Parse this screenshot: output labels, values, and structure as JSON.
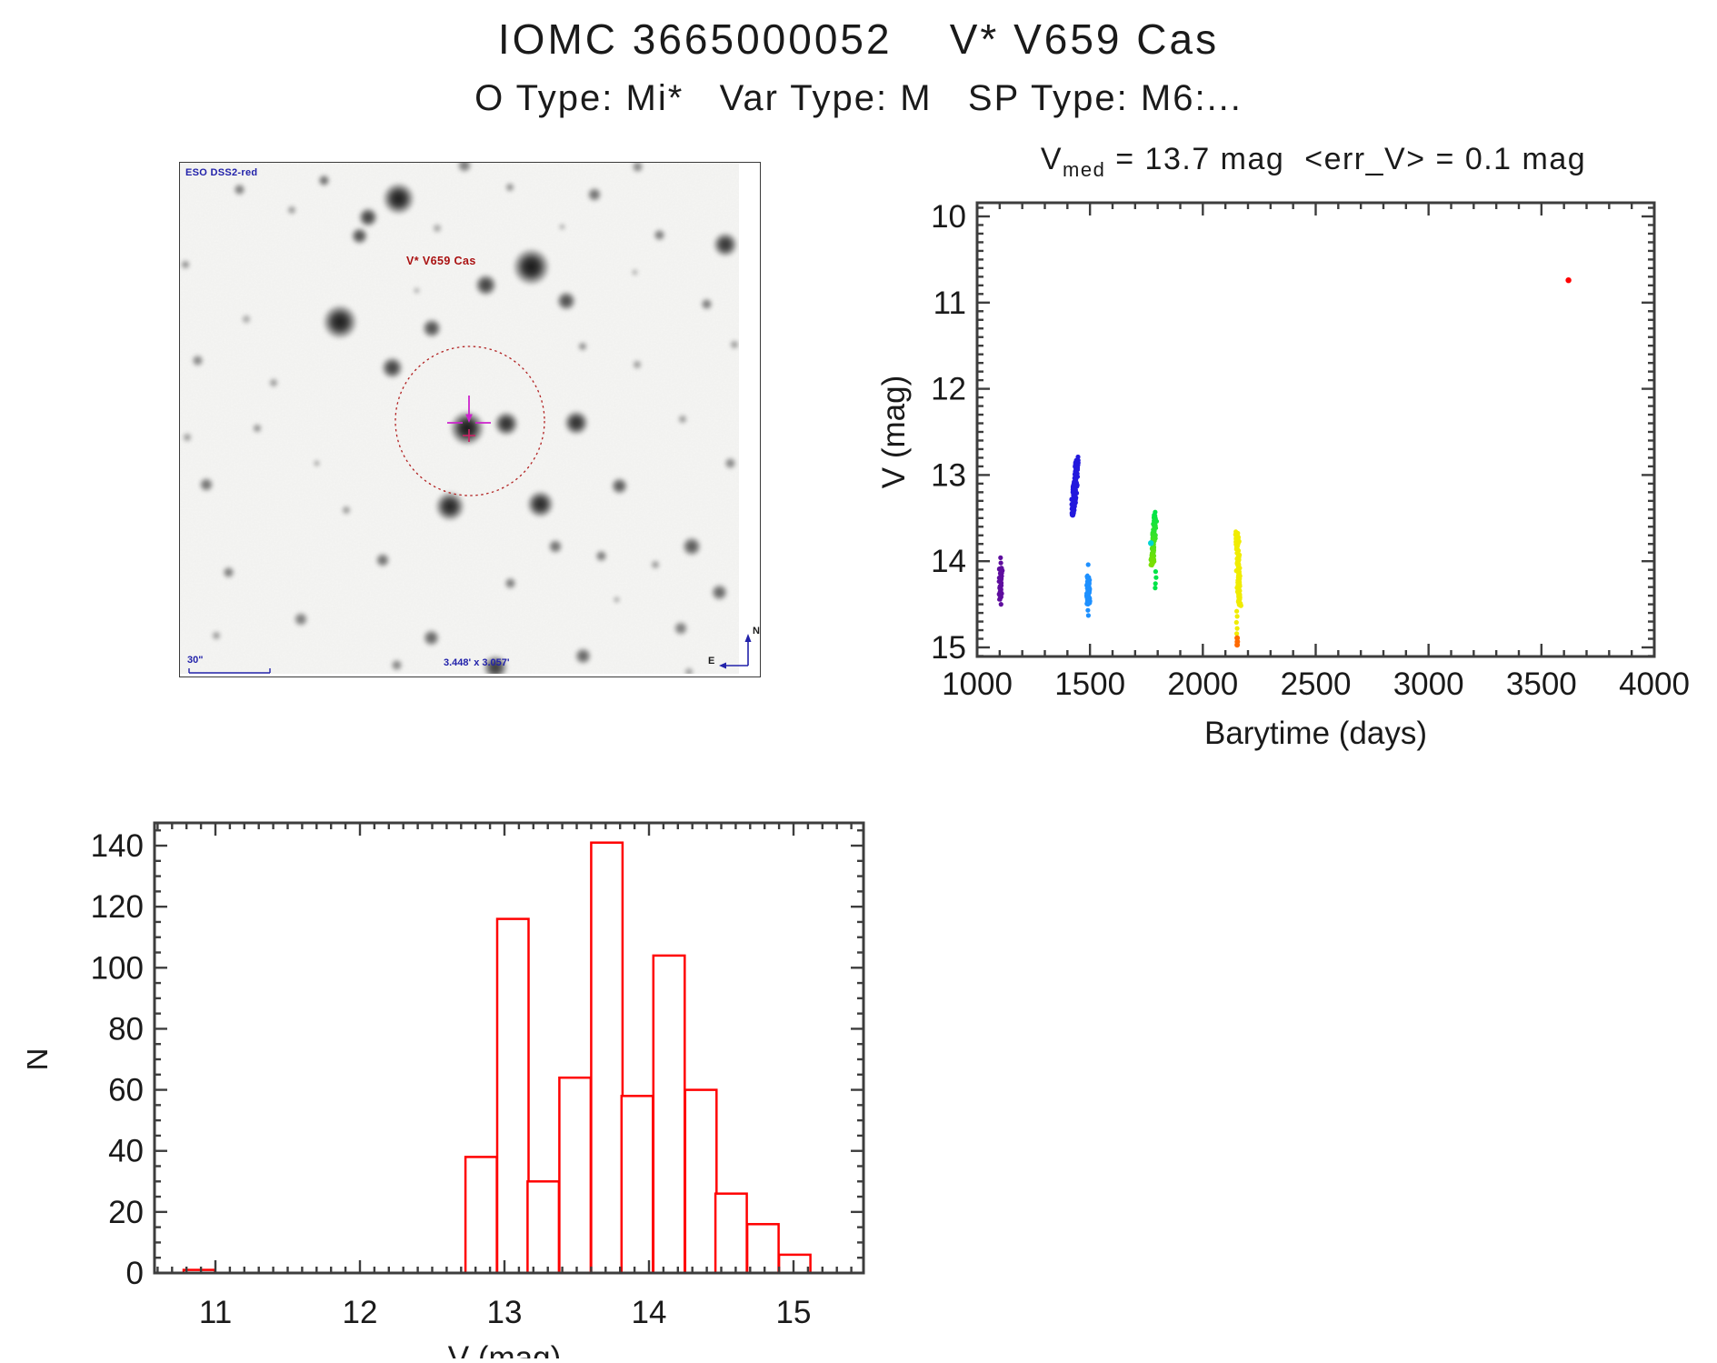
{
  "page": {
    "title": "IOMC 3665000052    V* V659 Cas",
    "subtitle": "O Type: Mi*   Var Type: M   SP Type: M6:..."
  },
  "finding_chart": {
    "survey_label": "ESO DSS2-red",
    "target_label": "V* V659 Cas",
    "scale_label": "30\"",
    "size_label": "3.448' x 3.057'",
    "compass": {
      "north": "N",
      "east": "E"
    },
    "colors": {
      "annotation_blue": "#2222aa",
      "annotation_red": "#b22222",
      "crosshair_magenta": "#cc22cc",
      "crosshair_plus": "#cc2266"
    },
    "stars": [
      [
        240,
        39,
        13,
        0.95
      ],
      [
        207,
        60,
        8,
        0.8
      ],
      [
        197,
        80,
        7,
        0.75
      ],
      [
        158,
        19,
        5,
        0.6
      ],
      [
        65,
        29,
        5,
        0.55
      ],
      [
        386,
        114,
        15,
        0.97
      ],
      [
        336,
        134,
        9,
        0.8
      ],
      [
        456,
        35,
        6,
        0.6
      ],
      [
        425,
        152,
        8,
        0.75
      ],
      [
        176,
        175,
        14,
        0.95
      ],
      [
        277,
        182,
        8,
        0.75
      ],
      [
        600,
        90,
        10,
        0.85
      ],
      [
        579,
        155,
        5,
        0.55
      ],
      [
        527,
        79,
        5,
        0.55
      ],
      [
        436,
        286,
        10,
        0.88
      ],
      [
        359,
        287,
        10,
        0.88
      ],
      [
        316,
        292,
        14,
        0.97
      ],
      [
        233,
        225,
        9,
        0.8
      ],
      [
        396,
        375,
        11,
        0.9
      ],
      [
        297,
        378,
        12,
        0.92
      ],
      [
        483,
        355,
        7,
        0.7
      ],
      [
        223,
        437,
        6,
        0.6
      ],
      [
        29,
        354,
        6,
        0.6
      ],
      [
        53,
        450,
        5,
        0.55
      ],
      [
        133,
        502,
        6,
        0.55
      ],
      [
        276,
        522,
        7,
        0.65
      ],
      [
        363,
        462,
        5,
        0.55
      ],
      [
        413,
        422,
        6,
        0.6
      ],
      [
        463,
        432,
        5,
        0.55
      ],
      [
        563,
        422,
        8,
        0.7
      ],
      [
        593,
        472,
        7,
        0.65
      ],
      [
        551,
        512,
        6,
        0.55
      ],
      [
        443,
        542,
        7,
        0.65
      ],
      [
        347,
        555,
        10,
        0.82
      ],
      [
        238,
        552,
        5,
        0.5
      ],
      [
        85,
        292,
        4,
        0.45
      ],
      [
        19,
        217,
        5,
        0.5
      ],
      [
        6,
        112,
        4,
        0.45
      ],
      [
        363,
        27,
        4,
        0.45
      ],
      [
        313,
        3,
        6,
        0.55
      ],
      [
        503,
        4,
        5,
        0.5
      ],
      [
        8,
        302,
        4,
        0.4
      ],
      [
        103,
        242,
        4,
        0.4
      ],
      [
        443,
        202,
        4,
        0.45
      ],
      [
        503,
        222,
        4,
        0.4
      ],
      [
        553,
        282,
        4,
        0.4
      ],
      [
        183,
        382,
        4,
        0.4
      ],
      [
        123,
        52,
        4,
        0.4
      ],
      [
        283,
        72,
        4,
        0.35
      ],
      [
        523,
        442,
        4,
        0.4
      ],
      [
        73,
        172,
        4,
        0.35
      ],
      [
        605,
        330,
        5,
        0.5
      ],
      [
        610,
        200,
        4,
        0.4
      ],
      [
        40,
        520,
        4,
        0.4
      ],
      [
        150,
        330,
        3,
        0.35
      ],
      [
        260,
        140,
        3,
        0.3
      ],
      [
        500,
        120,
        3,
        0.3
      ],
      [
        420,
        70,
        3,
        0.3
      ],
      [
        560,
        560,
        4,
        0.4
      ],
      [
        480,
        480,
        3,
        0.35
      ]
    ]
  },
  "chart_data": [
    {
      "type": "scatter",
      "name": "lightcurve",
      "title": "Vmed = 13.7 mag <err_V> = 0.1 mag",
      "title_parts": {
        "prefix": "V",
        "sub": "med",
        "rest": " = 13.7 mag  <err_V> = 0.1 mag"
      },
      "xlabel": "Barytime (days)",
      "ylabel": "V (mag)",
      "xlim": [
        1000,
        4000
      ],
      "ylim": [
        10,
        15
      ],
      "y_inverted": true,
      "grid": false,
      "x_major_ticks": [
        1000,
        1500,
        2000,
        2500,
        3000,
        3500,
        4000
      ],
      "x_minor_step": 100,
      "y_major_ticks": [
        10,
        11,
        12,
        13,
        14,
        15
      ],
      "y_minor_step": 0.1,
      "series": [
        {
          "name": "epoch-1-purple",
          "kind": "streak",
          "color": "#5e0d9e",
          "day": 1104,
          "v1": 14.08,
          "v2": 14.45,
          "n": 42,
          "xspread": 4,
          "tilt": 0,
          "dots": [
            [
              1104,
              13.96
            ],
            [
              1105,
              14.02
            ],
            [
              1106,
              14.5
            ]
          ]
        },
        {
          "name": "epoch-2-blue",
          "kind": "streak",
          "color": "#2319dd",
          "day": 1443,
          "v1": 12.82,
          "v2": 13.47,
          "n": 120,
          "xspread": 5,
          "tilt": -5,
          "dots": [
            [
              1447,
              12.79
            ]
          ]
        },
        {
          "name": "epoch-3-lightblue",
          "kind": "streak",
          "color": "#1e90ff",
          "day": 1492,
          "v1": 14.17,
          "v2": 14.5,
          "n": 55,
          "xspread": 4,
          "tilt": 0,
          "dots": [
            [
              1492,
              14.04
            ],
            [
              1491,
              14.57
            ],
            [
              1493,
              14.63
            ]
          ]
        },
        {
          "name": "epoch-4-green",
          "kind": "streak",
          "color": "#00e447",
          "color2": "#7cdf00",
          "day": 1791,
          "v1": 13.46,
          "v2": 14.05,
          "n": 85,
          "xspread": 4,
          "tilt": -4,
          "dots": [
            [
              1789,
              13.43
            ],
            [
              1791,
              14.12
            ],
            [
              1793,
              14.19
            ],
            [
              1790,
              14.26
            ],
            [
              1789,
              14.31
            ]
          ]
        },
        {
          "name": "epoch-4-cyan-outlier",
          "kind": "dots",
          "color": "#00d4d4",
          "r": 3.2,
          "dots": [
            [
              1770,
              13.79
            ]
          ]
        },
        {
          "name": "epoch-5-yellow",
          "kind": "streak",
          "color": "#f0ec00",
          "day": 2151,
          "v1": 13.66,
          "v2": 14.52,
          "n": 100,
          "xspread": 4,
          "tilt": 3,
          "dots": [
            [
              2150,
              14.58
            ],
            [
              2152,
              14.64
            ],
            [
              2149,
              14.71
            ],
            [
              2152,
              14.78
            ],
            [
              2150,
              14.84
            ]
          ]
        },
        {
          "name": "epoch-5-orange-end",
          "kind": "dots",
          "color": "#ff6a00",
          "r": 3,
          "dots": [
            [
              2152,
              14.89
            ],
            [
              2153,
              14.935
            ],
            [
              2152,
              14.97
            ]
          ]
        },
        {
          "name": "red-outlier",
          "kind": "dots",
          "color": "#ff0000",
          "r": 3.2,
          "dots": [
            [
              3620,
              10.74
            ]
          ]
        }
      ]
    },
    {
      "type": "bar",
      "name": "magnitude-histogram",
      "xlabel": "V (mag)",
      "ylabel": "N",
      "xlim": [
        10.58,
        15.48
      ],
      "ylim": [
        0,
        148
      ],
      "grid": false,
      "x_major_ticks": [
        11,
        12,
        13,
        14,
        15
      ],
      "x_minor_step": 0.1,
      "y_major_ticks": [
        0,
        20,
        40,
        60,
        80,
        100,
        120,
        140
      ],
      "y_minor_step": 5,
      "bar_color": "#ff0000",
      "bin_width": 0.217,
      "bins": [
        {
          "left": 10.78,
          "count": 1
        },
        {
          "left": 12.73,
          "count": 38
        },
        {
          "left": 12.95,
          "count": 116
        },
        {
          "left": 13.16,
          "count": 30
        },
        {
          "left": 13.38,
          "count": 64
        },
        {
          "left": 13.6,
          "count": 141
        },
        {
          "left": 13.81,
          "count": 58
        },
        {
          "left": 14.03,
          "count": 104
        },
        {
          "left": 14.25,
          "count": 60
        },
        {
          "left": 14.46,
          "count": 26
        },
        {
          "left": 14.68,
          "count": 16
        },
        {
          "left": 14.9,
          "count": 6
        }
      ]
    }
  ]
}
